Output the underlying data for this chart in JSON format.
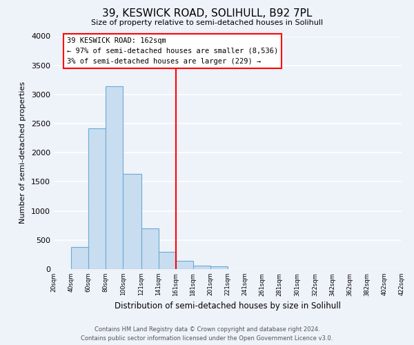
{
  "title": "39, KESWICK ROAD, SOLIHULL, B92 7PL",
  "subtitle": "Size of property relative to semi-detached houses in Solihull",
  "xlabel": "Distribution of semi-detached houses by size in Solihull",
  "ylabel": "Number of semi-detached properties",
  "bin_labels": [
    "20sqm",
    "40sqm",
    "60sqm",
    "80sqm",
    "100sqm",
    "121sqm",
    "141sqm",
    "161sqm",
    "181sqm",
    "201sqm",
    "221sqm",
    "241sqm",
    "261sqm",
    "281sqm",
    "301sqm",
    "322sqm",
    "342sqm",
    "362sqm",
    "382sqm",
    "402sqm",
    "422sqm"
  ],
  "bar_lefts": [
    20,
    40,
    60,
    80,
    100,
    121,
    141,
    161,
    181,
    201,
    221,
    241,
    261,
    281,
    301,
    322,
    342,
    362,
    382,
    402
  ],
  "bar_widths": [
    20,
    20,
    20,
    20,
    21,
    20,
    20,
    20,
    20,
    20,
    20,
    20,
    20,
    20,
    21,
    20,
    20,
    20,
    20,
    20
  ],
  "bar_values": [
    0,
    375,
    2420,
    3140,
    1640,
    700,
    300,
    140,
    55,
    50,
    0,
    0,
    0,
    0,
    0,
    0,
    0,
    0,
    0,
    0
  ],
  "bar_color": "#c8ddf0",
  "bar_edge_color": "#6aaad4",
  "property_line_x": 161,
  "property_line_label": "39 KESWICK ROAD: 162sqm",
  "annotation_line1": "← 97% of semi-detached houses are smaller (8,536)",
  "annotation_line2": "3% of semi-detached houses are larger (229) →",
  "yticks": [
    0,
    500,
    1000,
    1500,
    2000,
    2500,
    3000,
    3500,
    4000
  ],
  "ylim": [
    0,
    4000
  ],
  "xlim": [
    20,
    422
  ],
  "bins": [
    20,
    40,
    60,
    80,
    100,
    121,
    141,
    161,
    181,
    201,
    221,
    241,
    261,
    281,
    301,
    322,
    342,
    362,
    382,
    402,
    422
  ],
  "footer_line1": "Contains HM Land Registry data © Crown copyright and database right 2024.",
  "footer_line2": "Contains public sector information licensed under the Open Government Licence v3.0.",
  "background_color": "#eef2f9",
  "grid_color": "#ffffff"
}
